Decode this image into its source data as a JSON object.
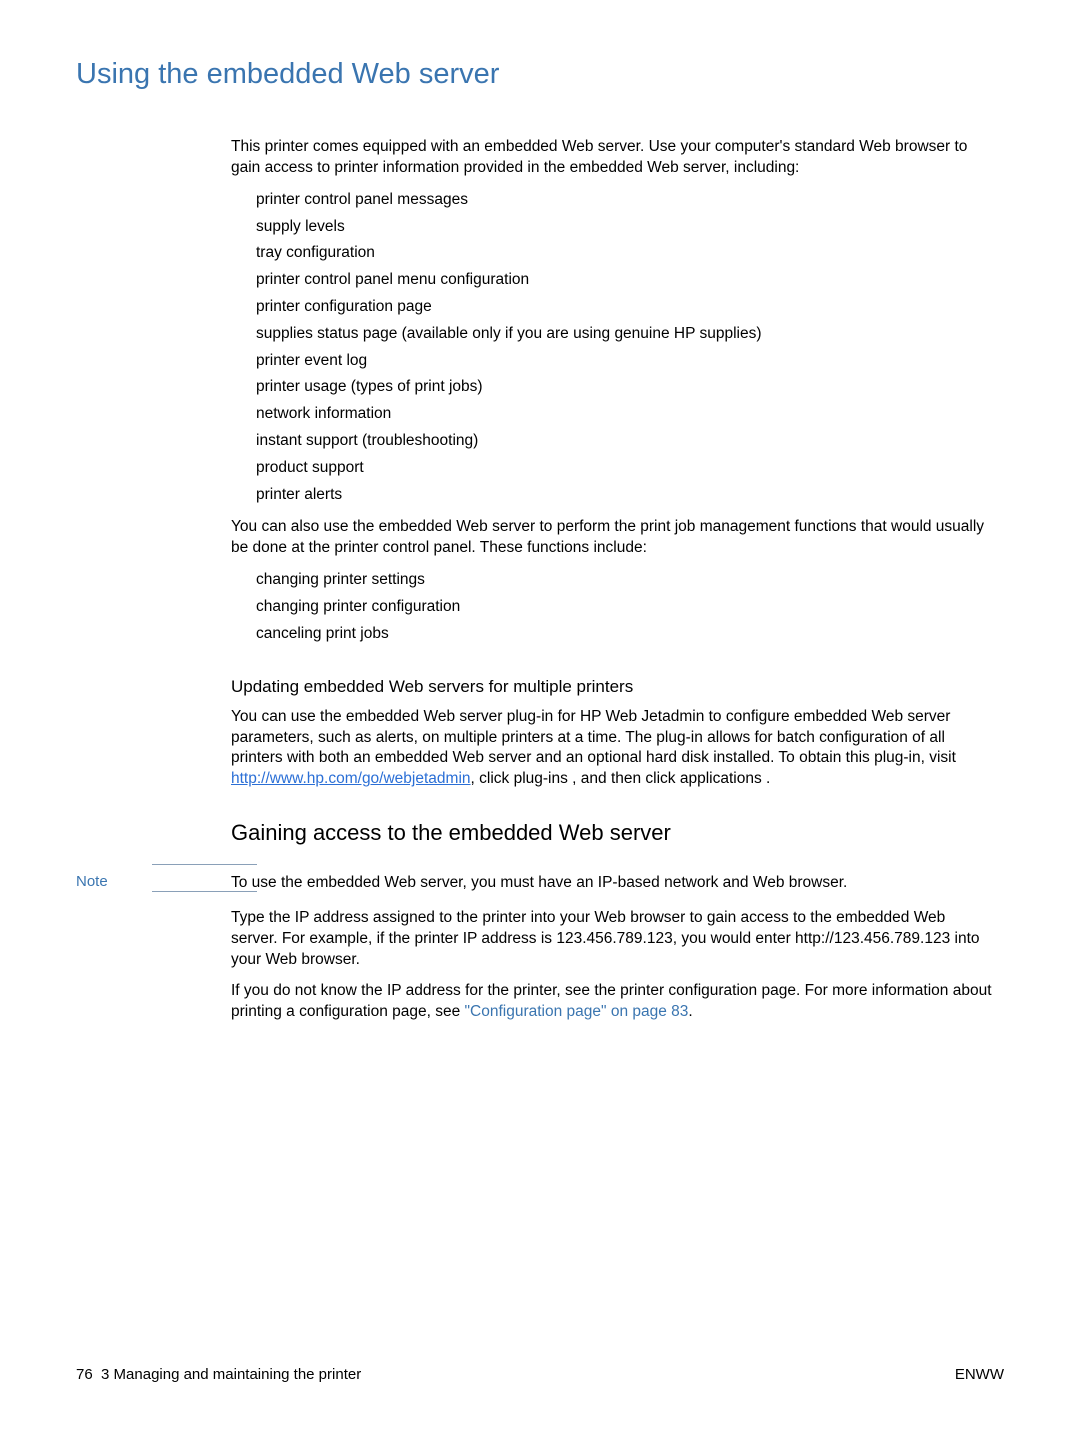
{
  "title": "Using the embedded Web server",
  "intro": "This printer comes equipped with an embedded Web server. Use your computer's standard Web browser to gain access to printer information provided in the embedded Web server, including:",
  "list1": [
    "printer control panel messages",
    "supply levels",
    "tray configuration",
    "printer control panel menu configuration",
    "printer configuration page",
    "supplies status page (available only if you are using genuine HP supplies)",
    "printer event log",
    "printer usage (types of print jobs)",
    "network information",
    "instant support (troubleshooting)",
    "product support",
    "printer alerts"
  ],
  "para2": "You can also use the embedded Web server to perform the print job management functions that would usually be done at the printer control panel. These functions include:",
  "list2": [
    "changing printer settings",
    "changing printer configuration",
    "canceling print jobs"
  ],
  "subheading1": "Updating embedded Web servers for multiple printers",
  "para3a": "You can use the embedded Web server plug-in for HP Web Jetadmin to configure embedded Web server parameters, such as alerts, on multiple printers at a time. The plug-in allows for batch configuration of all printers with both an embedded Web server and an optional hard disk installed. To obtain this plug-in, visit ",
  "link1": "http://www.hp.com/go/webjetadmin",
  "para3b": ", click ",
  "para3c": "plug-ins",
  "para3d": " , and then click ",
  "para3e": "applications",
  "para3f": " .",
  "heading2": "Gaining access to the embedded Web server",
  "note_label": "Note",
  "note_text": "To use the embedded Web server, you must have an IP-based network and Web browser.",
  "para4": "Type the IP address assigned to the printer into your Web browser to gain access to the embedded Web server. For example, if the printer IP address is 123.456.789.123, you would enter http://123.456.789.123 into your Web browser.",
  "para5a": "If you do not know the IP address for the printer, see the printer configuration page. For more information about printing a configuration page, see ",
  "xref": "\"Configuration page\" on page 83",
  "para5b": ".",
  "footer_left_page": "76",
  "footer_left_text": "3 Managing and maintaining the printer",
  "footer_right": "ENWW"
}
